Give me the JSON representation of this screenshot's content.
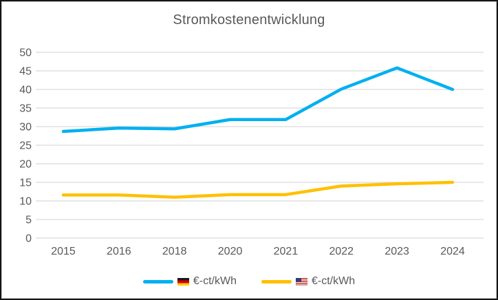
{
  "chart_data": {
    "type": "line",
    "title": "Stromkostenentwicklung",
    "categories": [
      "2015",
      "2016",
      "2018",
      "2020",
      "2021",
      "2022",
      "2023",
      "2024"
    ],
    "series": [
      {
        "name": "€-ct/kWh",
        "country_flag": "germany-flag-icon",
        "color": "#00B0F0",
        "values": [
          28.7,
          29.6,
          29.4,
          31.9,
          31.9,
          40.1,
          45.8,
          40.0
        ]
      },
      {
        "name": "€-ct/kWh",
        "country_flag": "us-flag-icon",
        "color": "#FFC000",
        "values": [
          11.6,
          11.6,
          11.0,
          11.7,
          11.7,
          14.0,
          14.6,
          15.0
        ]
      }
    ],
    "legend": {
      "position": "bottom",
      "entries": [
        {
          "icon": "germany-flag-icon",
          "label": "€-ct/kWh"
        },
        {
          "icon": "us-flag-icon",
          "label": "€-ct/kWh"
        }
      ]
    },
    "ylim": [
      0,
      50
    ],
    "yticks": [
      0,
      5,
      10,
      15,
      20,
      25,
      30,
      35,
      40,
      45,
      50
    ],
    "grid": true,
    "colors": {
      "grid": "#D9D9D9",
      "axis_text": "#595959",
      "title_text": "#595959"
    }
  }
}
